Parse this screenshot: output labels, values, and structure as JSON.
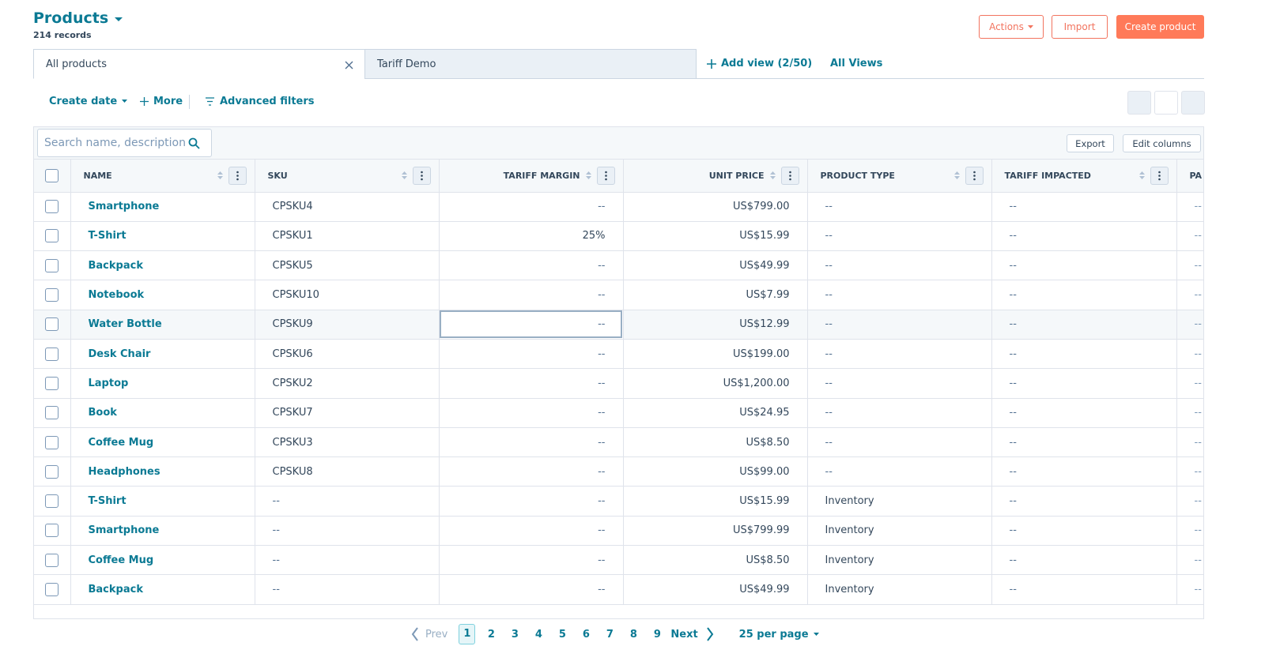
{
  "header": {
    "title": "Products",
    "subtitle": "214 records",
    "actions": "Actions",
    "import": "Import",
    "create": "Create product"
  },
  "tabs": [
    "All products",
    "Tariff Demo"
  ],
  "add_view": "Add view (2/50)",
  "all_views": "All Views",
  "filters": {
    "create_date": "Create date",
    "more": "More",
    "advanced": "Advanced filters"
  },
  "search_placeholder": "Search name, description",
  "export": "Export",
  "edit_columns": "Edit columns",
  "table": {
    "columns": [
      "NAME",
      "SKU",
      "TARIFF MARGIN",
      "UNIT PRICE",
      "PRODUCT TYPE",
      "TARIFF IMPACTED",
      "PA"
    ],
    "rows": [
      [
        "Smartphone",
        "CPSKU4",
        "--",
        "US$799.00",
        "--",
        "--",
        "--"
      ],
      [
        "T-Shirt",
        "CPSKU1",
        "25%",
        "US$15.99",
        "--",
        "--",
        "--"
      ],
      [
        "Backpack",
        "CPSKU5",
        "--",
        "US$49.99",
        "--",
        "--",
        "--"
      ],
      [
        "Notebook",
        "CPSKU10",
        "--",
        "US$7.99",
        "--",
        "--",
        "--"
      ],
      [
        "Water Bottle",
        "CPSKU9",
        "--",
        "US$12.99",
        "--",
        "--",
        "--"
      ],
      [
        "Desk Chair",
        "CPSKU6",
        "--",
        "US$199.00",
        "--",
        "--",
        "--"
      ],
      [
        "Laptop",
        "CPSKU2",
        "--",
        "US$1,200.00",
        "--",
        "--",
        "--"
      ],
      [
        "Book",
        "CPSKU7",
        "--",
        "US$24.95",
        "--",
        "--",
        "--"
      ],
      [
        "Coffee Mug",
        "CPSKU3",
        "--",
        "US$8.50",
        "--",
        "--",
        "--"
      ],
      [
        "Headphones",
        "CPSKU8",
        "--",
        "US$99.00",
        "--",
        "--",
        "--"
      ],
      [
        "T-Shirt",
        "--",
        "--",
        "US$15.99",
        "Inventory",
        "--",
        "--"
      ],
      [
        "Smartphone",
        "--",
        "--",
        "US$799.99",
        "Inventory",
        "--",
        "--"
      ],
      [
        "Coffee Mug",
        "--",
        "--",
        "US$8.50",
        "Inventory",
        "--",
        "--"
      ],
      [
        "Backpack",
        "--",
        "--",
        "US$49.99",
        "Inventory",
        "--",
        "--"
      ]
    ]
  },
  "pagination": {
    "prev": "Prev",
    "pages": [
      "1",
      "2",
      "3",
      "4",
      "5",
      "6",
      "7",
      "8",
      "9"
    ],
    "next": "Next",
    "per_page": "25 per page"
  }
}
